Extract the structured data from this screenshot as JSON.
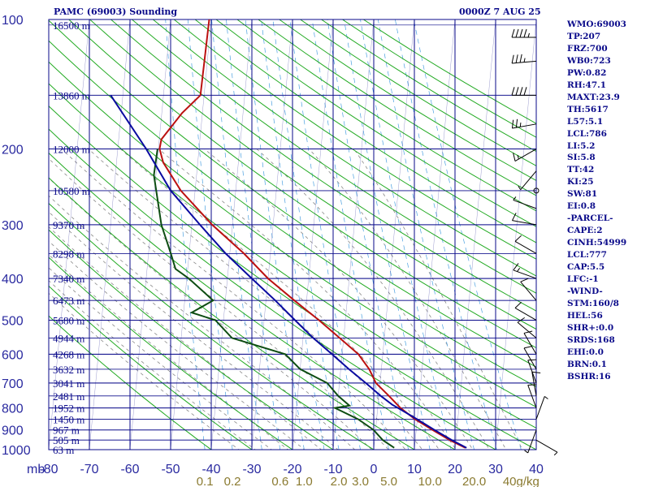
{
  "header": {
    "title": "PAMC (69003) Sounding",
    "datetime": "0000Z  7 AUG 25"
  },
  "indices": [
    "WMO:69003",
    "TP:207",
    "FRZ:700",
    "WB0:723",
    "PW:0.82",
    "RH:47.1",
    "MAXT:23.9",
    "TH:5617",
    "L57:5.1",
    "LCL:786",
    "LI:5.2",
    "SI:5.8",
    "TT:42",
    "KI:25",
    "SW:81",
    "EI:0.8",
    "-PARCEL-",
    "CAPE:2",
    "CINH:54999",
    "LCL:777",
    "CAP:5.5",
    "LFC:-1",
    "-WIND-",
    "STM:160/8",
    "HEL:56",
    "SHR+:0.0",
    "SRDS:168",
    "EHI:0.0",
    "BRN:0.1",
    "BSHR:16"
  ],
  "colors": {
    "background": "#ffffff",
    "grid": "#0a0a8a",
    "dry_adiabat": "#22aa22",
    "moist_adiabat": "#888888",
    "mixing_ratio": "#4aa0e0",
    "temperature": "#bb1111",
    "dewpoint": "#0d4d12",
    "parcel": "#0a0aa0",
    "tick_text": "#2a2aa0",
    "mixing_text": "#8a7a30",
    "wind_barb": "#000000"
  },
  "chart_data": {
    "type": "line",
    "title": "PAMC (69003) Sounding",
    "skew_degC_per_decade_logp": 10,
    "y_axis": {
      "label": "mb",
      "scale": "log",
      "range": [
        1000,
        100
      ],
      "ticks": [
        100,
        200,
        300,
        400,
        500,
        600,
        700,
        800,
        900,
        1000
      ],
      "height_labels": [
        {
          "p": 103,
          "label": "16500 m"
        },
        {
          "p": 150,
          "label": "13860 m"
        },
        {
          "p": 200,
          "label": "12000 m"
        },
        {
          "p": 250,
          "label": "10580 m"
        },
        {
          "p": 300,
          "label": "9370 m"
        },
        {
          "p": 350,
          "label": "8298 m"
        },
        {
          "p": 400,
          "label": "7340 m"
        },
        {
          "p": 450,
          "label": "6473 m"
        },
        {
          "p": 500,
          "label": "5680 m"
        },
        {
          "p": 550,
          "label": "4944 m"
        },
        {
          "p": 600,
          "label": "4268 m"
        },
        {
          "p": 650,
          "label": "3632 m"
        },
        {
          "p": 700,
          "label": "3041 m"
        },
        {
          "p": 750,
          "label": "2481 m"
        },
        {
          "p": 800,
          "label": "1952 m"
        },
        {
          "p": 850,
          "label": "1450 m"
        },
        {
          "p": 900,
          "label": "967 m"
        },
        {
          "p": 950,
          "label": "505 m"
        },
        {
          "p": 1000,
          "label": "63 m"
        }
      ]
    },
    "x_axis": {
      "label": "",
      "range": [
        -80,
        40
      ],
      "ticks": [
        -80,
        -70,
        -60,
        -50,
        -40,
        -30,
        -20,
        -10,
        0,
        10,
        20,
        30,
        40
      ],
      "tick_labels": [
        "-80",
        "-70",
        "-60",
        "-50",
        "-40",
        "-30",
        "-20",
        "-10",
        "0",
        "10",
        "20",
        "30",
        "40"
      ]
    },
    "mixing_ratio_labels": [
      {
        "w": 0.1,
        "label": "0.1"
      },
      {
        "w": 0.2,
        "label": "0.2"
      },
      {
        "w": 0.6,
        "label": "0.6"
      },
      {
        "w": 1.0,
        "label": "1.0"
      },
      {
        "w": 2.0,
        "label": "2.0"
      },
      {
        "w": 3.0,
        "label": "3.0"
      },
      {
        "w": 5.0,
        "label": "5.0"
      },
      {
        "w": 10.0,
        "label": "10.0"
      },
      {
        "w": 20.0,
        "label": "20.0"
      },
      {
        "w": 40.0,
        "label": "40g/kg"
      }
    ],
    "series": [
      {
        "key": "temperature",
        "points": [
          [
            100,
            -50.5
          ],
          [
            150,
            -50.9
          ],
          [
            165,
            -55
          ],
          [
            190,
            -59.5
          ],
          [
            200,
            -59.7
          ],
          [
            215,
            -58.5
          ],
          [
            250,
            -53.5
          ],
          [
            300,
            -45
          ],
          [
            350,
            -36.5
          ],
          [
            400,
            -30
          ],
          [
            450,
            -23
          ],
          [
            500,
            -16.5
          ],
          [
            550,
            -11
          ],
          [
            600,
            -6
          ],
          [
            650,
            -3
          ],
          [
            700,
            -1
          ],
          [
            750,
            2.5
          ],
          [
            790,
            5
          ],
          [
            800,
            5.6
          ],
          [
            850,
            9.5
          ],
          [
            900,
            14
          ],
          [
            950,
            18.5
          ],
          [
            990,
            22.5
          ]
        ]
      },
      {
        "key": "dewpoint",
        "points": [
          [
            200,
            -60.2
          ],
          [
            230,
            -60.5
          ],
          [
            300,
            -57.5
          ],
          [
            350,
            -54.5
          ],
          [
            380,
            -53
          ],
          [
            400,
            -49.5
          ],
          [
            450,
            -43
          ],
          [
            480,
            -48
          ],
          [
            500,
            -42
          ],
          [
            550,
            -37.5
          ],
          [
            600,
            -24
          ],
          [
            650,
            -20
          ],
          [
            700,
            -13
          ],
          [
            750,
            -10
          ],
          [
            790,
            -7
          ],
          [
            800,
            -10.5
          ],
          [
            850,
            -4.5
          ],
          [
            900,
            -0.5
          ],
          [
            950,
            2
          ],
          [
            990,
            5
          ]
        ]
      },
      {
        "key": "parcel",
        "points": [
          [
            150,
            -73
          ],
          [
            200,
            -63
          ],
          [
            250,
            -56
          ],
          [
            300,
            -48
          ],
          [
            350,
            -41
          ],
          [
            400,
            -34
          ],
          [
            450,
            -27.7
          ],
          [
            500,
            -22.4
          ],
          [
            550,
            -17.5
          ],
          [
            600,
            -12.5
          ],
          [
            650,
            -8
          ],
          [
            700,
            -3.5
          ],
          [
            750,
            0.5
          ],
          [
            786,
            3.5
          ],
          [
            800,
            5
          ],
          [
            850,
            10
          ],
          [
            900,
            14.5
          ],
          [
            950,
            19
          ],
          [
            990,
            22.8
          ]
        ]
      }
    ],
    "wind_barbs": [
      {
        "p": 110,
        "dir": 270,
        "spd": 45
      },
      {
        "p": 125,
        "dir": 265,
        "spd": 35
      },
      {
        "p": 150,
        "dir": 270,
        "spd": 40
      },
      {
        "p": 175,
        "dir": 260,
        "spd": 25
      },
      {
        "p": 200,
        "dir": 240,
        "spd": 15
      },
      {
        "p": 225,
        "dir": 220,
        "spd": 5
      },
      {
        "p": 250,
        "dir": 0,
        "spd": 0
      },
      {
        "p": 275,
        "dir": 290,
        "spd": 5
      },
      {
        "p": 300,
        "dir": 280,
        "spd": 10
      },
      {
        "p": 350,
        "dir": 300,
        "spd": 10
      },
      {
        "p": 400,
        "dir": 290,
        "spd": 15
      },
      {
        "p": 450,
        "dir": 320,
        "spd": 10
      },
      {
        "p": 500,
        "dir": 300,
        "spd": 10
      },
      {
        "p": 550,
        "dir": 310,
        "spd": 10
      },
      {
        "p": 600,
        "dir": 330,
        "spd": 10
      },
      {
        "p": 650,
        "dir": 330,
        "spd": 10
      },
      {
        "p": 700,
        "dir": 340,
        "spd": 10
      },
      {
        "p": 750,
        "dir": 350,
        "spd": 10
      },
      {
        "p": 800,
        "dir": 340,
        "spd": 10
      },
      {
        "p": 850,
        "dir": 20,
        "spd": 5
      },
      {
        "p": 900,
        "dir": 200,
        "spd": 5
      },
      {
        "p": 950,
        "dir": 120,
        "spd": 5
      }
    ]
  }
}
